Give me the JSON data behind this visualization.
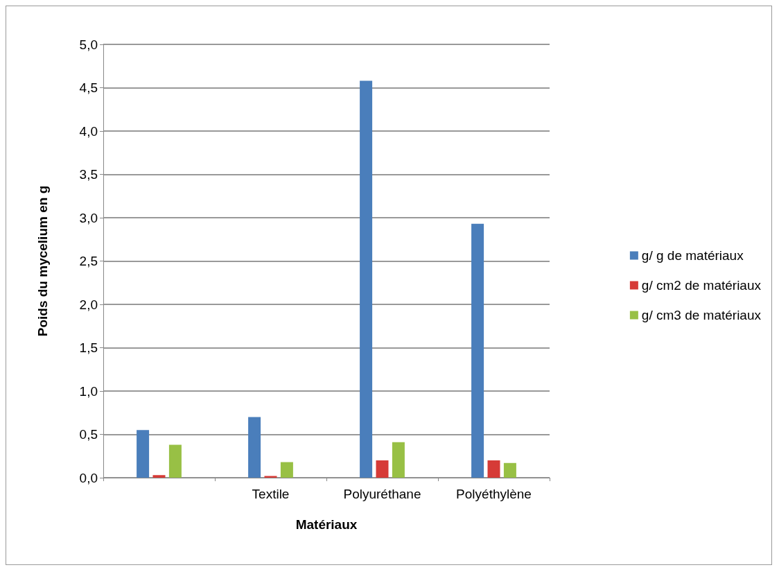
{
  "chart_data": {
    "type": "bar",
    "xlabel": "Matériaux",
    "ylabel": "Poids du mycelium en g",
    "categories": [
      null,
      "Textile",
      "Polyuréthane",
      "Polyéthylène"
    ],
    "series": [
      {
        "name": "g/ g de matériaux",
        "color": "#4a7ebb",
        "values": [
          0.55,
          0.7,
          4.58,
          2.93
        ]
      },
      {
        "name": "g/ cm2 de matériaux",
        "color": "#d63b37",
        "values": [
          0.03,
          0.02,
          0.2,
          0.2
        ]
      },
      {
        "name": "g/ cm3 de matériaux",
        "color": "#98c045",
        "values": [
          0.38,
          0.18,
          0.41,
          0.17
        ]
      }
    ],
    "ylim": [
      0,
      5
    ],
    "yticks": [
      {
        "value": 0,
        "label": "0,0"
      },
      {
        "value": 0.5,
        "label": "0,5"
      },
      {
        "value": 1,
        "label": "1,0"
      },
      {
        "value": 1.5,
        "label": "1,5"
      },
      {
        "value": 2,
        "label": "2,0"
      },
      {
        "value": 2.5,
        "label": "2,5"
      },
      {
        "value": 3,
        "label": "3,0"
      },
      {
        "value": 3.5,
        "label": "3,5"
      },
      {
        "value": 4,
        "label": "4,0"
      },
      {
        "value": 4.5,
        "label": "4,5"
      },
      {
        "value": 5,
        "label": "5,0"
      }
    ],
    "grid": "y",
    "legend": "right"
  }
}
